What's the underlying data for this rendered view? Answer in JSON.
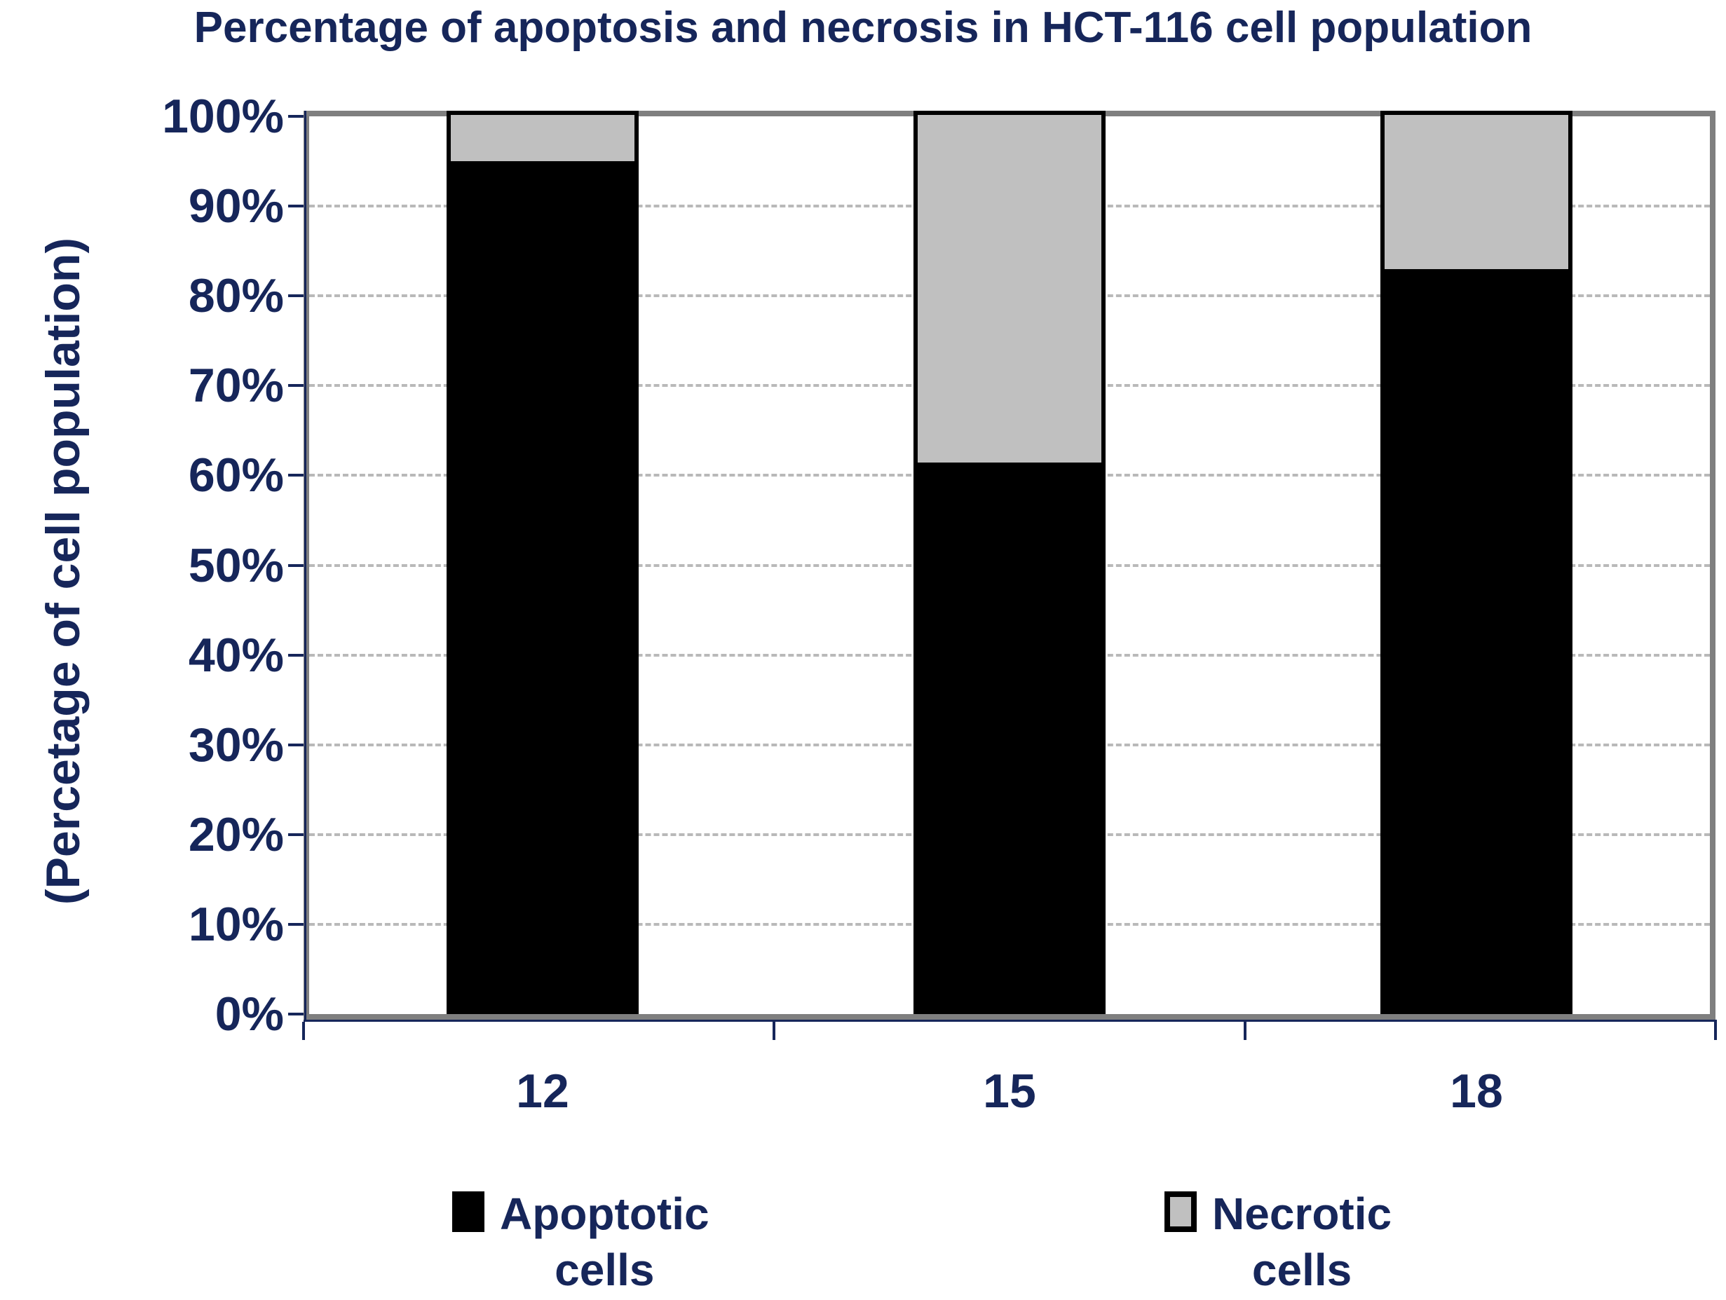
{
  "title": "Percentage of apoptosis and necrosis in HCT-116 cell population",
  "y_axis_title": "(Percetage of cell population)",
  "chart_data": {
    "type": "bar",
    "stacked": true,
    "title": "Percentage of apoptosis and necrosis in HCT-116 cell population",
    "xlabel": "",
    "ylabel": "(Percetage of cell population)",
    "categories": [
      "12",
      "15",
      "18"
    ],
    "series": [
      {
        "name": "Apoptotic cells",
        "color": "#000000",
        "values": [
          94.5,
          61,
          82.5
        ]
      },
      {
        "name": "Necrotic cells",
        "color": "#c0c0c0",
        "values": [
          5.5,
          39,
          17.5
        ]
      }
    ],
    "values_unit": "%",
    "ylim": [
      0,
      100
    ],
    "ytick_step": 10,
    "ytick_labels": [
      "0%",
      "10%",
      "20%",
      "30%",
      "40%",
      "50%",
      "60%",
      "70%",
      "80%",
      "90%",
      "100%"
    ],
    "grid": "horizontal-dashed",
    "grid_levels": [
      10,
      20,
      30,
      40,
      50,
      60,
      70,
      80,
      90
    ],
    "legend_position": "bottom",
    "legend": [
      {
        "label": "Apoptotic cells",
        "label_lines": "Apoptotic\ncells",
        "color": "#000000",
        "swatch_border": "#000000"
      },
      {
        "label": "Necrotic cells",
        "label_lines": "Necrotic\ncells",
        "color": "#c0c0c0",
        "swatch_border": "#000000"
      }
    ]
  },
  "colors": {
    "text_navy": "#16265a",
    "plot_border_gray": "#7f7f7f",
    "gridline_gray": "#b9b9b9",
    "apoptotic_black": "#000000",
    "necrotic_gray": "#c0c0c0",
    "background": "#ffffff"
  }
}
